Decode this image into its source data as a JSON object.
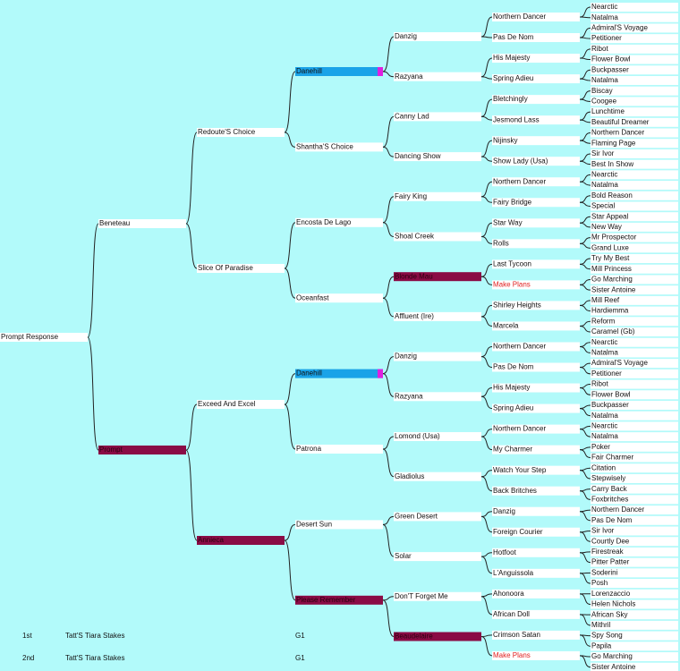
{
  "pedigree": {
    "generations": [
      [
        "Prompt Response"
      ],
      [
        "Beneteau",
        "Prompt"
      ],
      [
        "Redoute'S Choice",
        "Slice Of Paradise",
        "Exceed And Excel",
        "Annieca"
      ],
      [
        "Danehill",
        "Shantha'S Choice",
        "Encosta De Lago",
        "Oceanfast",
        "Danehill",
        "Patrona",
        "Desert Sun",
        "Please Remember"
      ],
      [
        "Danzig",
        "Razyana",
        "Canny Lad",
        "Dancing Show",
        "Fairy King",
        "Shoal Creek",
        "Blonde Mau",
        "Affluent (Ire)",
        "Danzig",
        "Razyana",
        "Lomond (Usa)",
        "Gladiolus",
        "Green Desert",
        "Solar",
        "Don'T Forget Me",
        "Beaudelaire"
      ],
      [
        "Northern Dancer",
        "Pas De Nom",
        "His Majesty",
        "Spring Adieu",
        "Bletchingly",
        "Jesmond Lass",
        "Nijinsky",
        "Show Lady (Usa)",
        "Northern Dancer",
        "Fairy Bridge",
        "Star Way",
        "Rolls",
        "Last Tycoon",
        "Make Plans",
        "Shirley Heights",
        "Marcela",
        "Northern Dancer",
        "Pas De Nom",
        "His Majesty",
        "Spring Adieu",
        "Northern Dancer",
        "My Charmer",
        "Watch Your Step",
        "Back Britches",
        "Danzig",
        "Foreign Courier",
        "Hotfoot",
        "L'Anguissola",
        "Ahonoora",
        "African Doll",
        "Crimson Satan",
        "Make Plans"
      ],
      [
        "Nearctic",
        "Natalma",
        "Admiral'S Voyage",
        "Petitioner",
        "Ribot",
        "Flower Bowl",
        "Buckpasser",
        "Natalma",
        "Biscay",
        "Coogee",
        "Lunchtime",
        "Beautiful Dreamer",
        "Northern Dancer",
        "Flaming Page",
        "Sir Ivor",
        "Best In Show",
        "Nearctic",
        "Natalma",
        "Bold Reason",
        "Special",
        "Star Appeal",
        "New Way",
        "Mr Prospector",
        "Grand Luxe",
        "Try My Best",
        "Mill Princess",
        "Go Marching",
        "Sister Antoine",
        "Mill Reef",
        "Hardiemma",
        "Reform",
        "Caramel (Gb)",
        "Nearctic",
        "Natalma",
        "Admiral'S Voyage",
        "Petitioner",
        "Ribot",
        "Flower Bowl",
        "Buckpasser",
        "Natalma",
        "Nearctic",
        "Natalma",
        "Poker",
        "Fair Charmer",
        "Citation",
        "Stepwisely",
        "Carry Back",
        "Foxbritches",
        "Northern Dancer",
        "Pas De Nom",
        "Sir Ivor",
        "Courtly Dee",
        "Firestreak",
        "Pitter Patter",
        "Soderini",
        "Posh",
        "Lorenzaccio",
        "Helen Nichols",
        "African Sky",
        "Mithril",
        "Spy Song",
        "Papila",
        "Go Marching",
        "Sister Antoine"
      ]
    ]
  },
  "results": [
    {
      "place": "1st",
      "race": "Tatt'S Tiara Stakes",
      "grade": "G1"
    },
    {
      "place": "2nd",
      "race": "Tatt'S Tiara Stakes",
      "grade": "G1"
    }
  ]
}
